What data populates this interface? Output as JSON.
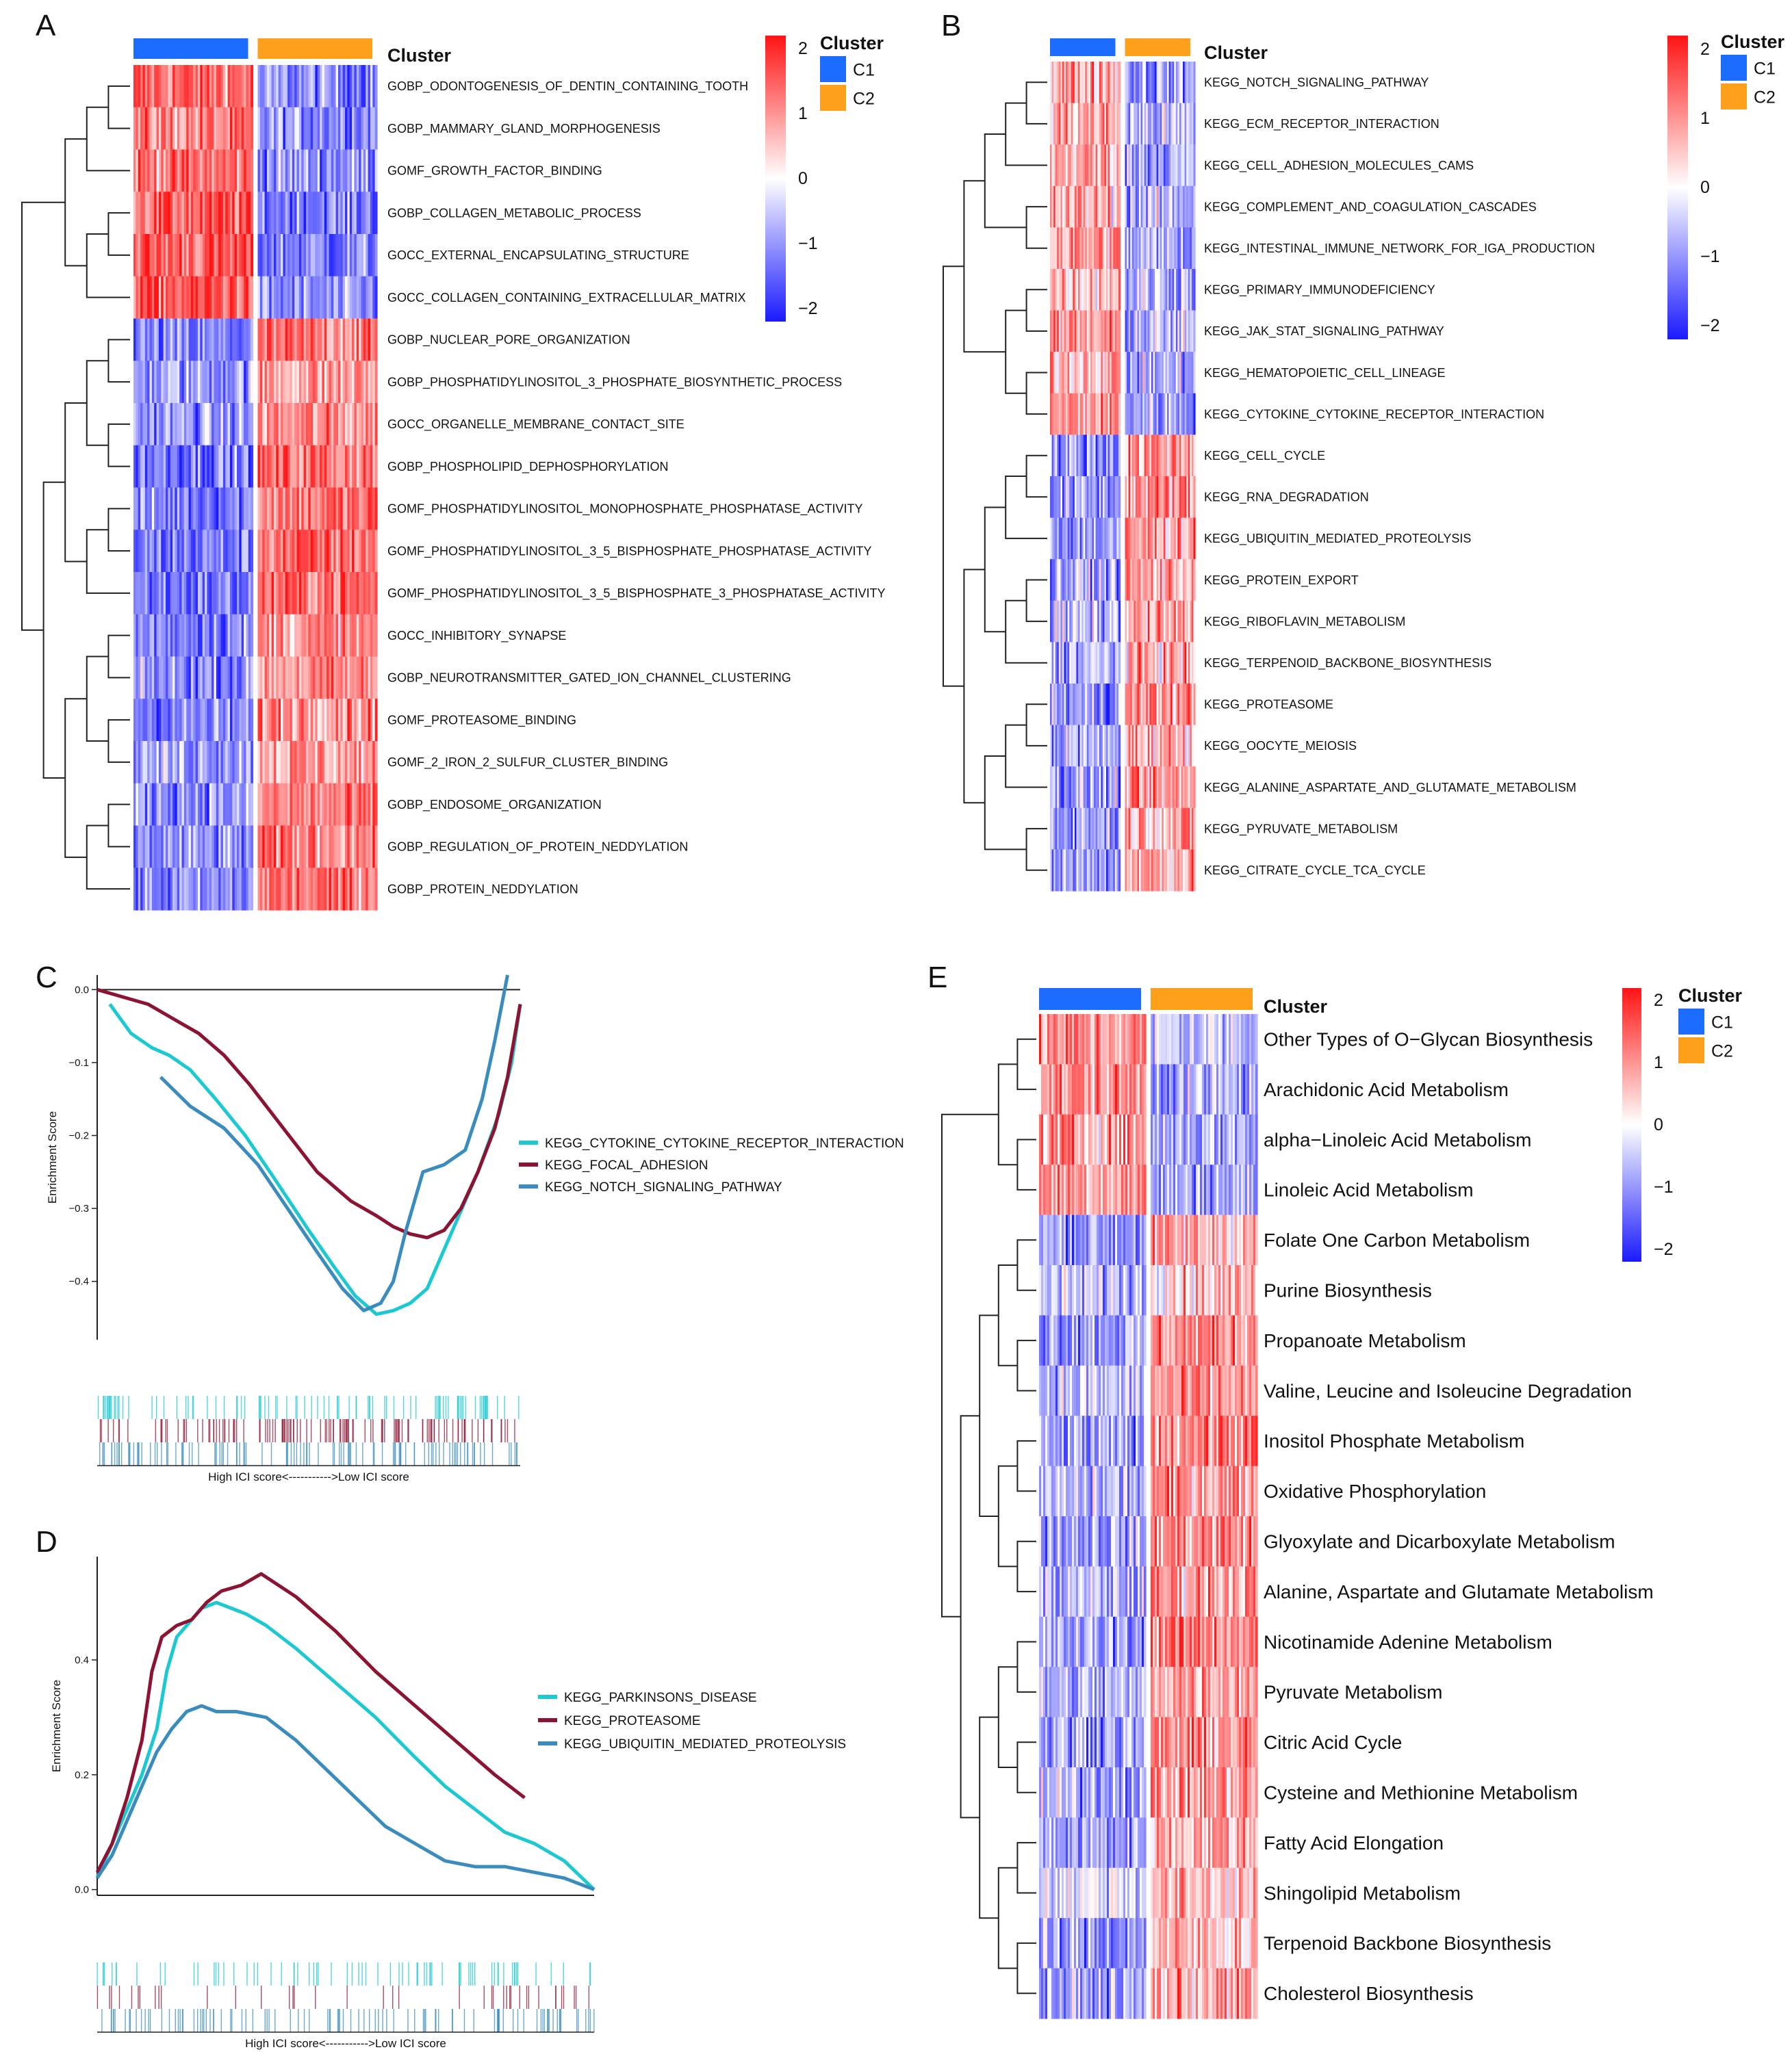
{
  "colors": {
    "c1": "#1c6cff",
    "c2": "#ffa01c",
    "heat_low": "#1a1aff",
    "heat_mid": "#ffffff",
    "heat_high": "#ff1414",
    "cyan": "#1cc8d2",
    "maroon": "#8c1432",
    "steel": "#3a8cbe",
    "dendro": "#222222"
  },
  "cluster_legend": {
    "title": "Cluster",
    "c1": "C1",
    "c2": "C2"
  },
  "panels": {
    "A": {
      "letter": "A",
      "color_scale_ticks": [
        "2",
        "1",
        "0",
        "−1",
        "−2"
      ],
      "rows": [
        {
          "label": "GOBP_ODONTOGENESIS_OF_DENTIN_CONTAINING_TOOTH",
          "c1": 1.4,
          "c2": -1.1
        },
        {
          "label": "GOBP_MAMMARY_GLAND_MORPHOGENESIS",
          "c1": 1.1,
          "c2": -1.0
        },
        {
          "label": "GOMF_GROWTH_FACTOR_BINDING",
          "c1": 1.3,
          "c2": -1.0
        },
        {
          "label": "GOBP_COLLAGEN_METABOLIC_PROCESS",
          "c1": 1.5,
          "c2": -1.2
        },
        {
          "label": "GOCC_EXTERNAL_ENCAPSULATING_STRUCTURE",
          "c1": 1.5,
          "c2": -1.2
        },
        {
          "label": "GOCC_COLLAGEN_CONTAINING_EXTRACELLULAR_MATRIX",
          "c1": 1.6,
          "c2": -1.2
        },
        {
          "label": "GOBP_NUCLEAR_PORE_ORGANIZATION",
          "c1": -1.3,
          "c2": 1.2
        },
        {
          "label": "GOBP_PHOSPHATIDYLINOSITOL_3_PHOSPHATE_BIOSYNTHETIC_PROCESS",
          "c1": -0.9,
          "c2": 0.9
        },
        {
          "label": "GOCC_ORGANELLE_MEMBRANE_CONTACT_SITE",
          "c1": -1.0,
          "c2": 1.0
        },
        {
          "label": "GOBP_PHOSPHOLIPID_DEPHOSPHORYLATION",
          "c1": -1.2,
          "c2": 1.3
        },
        {
          "label": "GOMF_PHOSPHATIDYLINOSITOL_MONOPHOSPHATE_PHOSPHATASE_ACTIVITY",
          "c1": -1.2,
          "c2": 1.3
        },
        {
          "label": "GOMF_PHOSPHATIDYLINOSITOL_3_5_BISPHOSPHATE_PHOSPHATASE_ACTIVITY",
          "c1": -1.3,
          "c2": 1.4
        },
        {
          "label": "GOMF_PHOSPHATIDYLINOSITOL_3_5_BISPHOSPHATE_3_PHOSPHATASE_ACTIVITY",
          "c1": -1.3,
          "c2": 1.4
        },
        {
          "label": "GOCC_INHIBITORY_SYNAPSE",
          "c1": -1.1,
          "c2": 1.0
        },
        {
          "label": "GOBP_NEUROTRANSMITTER_GATED_ION_CHANNEL_CLUSTERING",
          "c1": -1.1,
          "c2": 1.0
        },
        {
          "label": "GOMF_PROTEASOME_BINDING",
          "c1": -1.2,
          "c2": 1.2
        },
        {
          "label": "GOMF_2_IRON_2_SULFUR_CLUSTER_BINDING",
          "c1": -0.8,
          "c2": 0.9
        },
        {
          "label": "GOBP_ENDOSOME_ORGANIZATION",
          "c1": -1.0,
          "c2": 1.1
        },
        {
          "label": "GOBP_REGULATION_OF_PROTEIN_NEDDYLATION",
          "c1": -1.1,
          "c2": 1.2
        },
        {
          "label": "GOBP_PROTEIN_NEDDYLATION",
          "c1": -1.2,
          "c2": 1.3
        }
      ]
    },
    "B": {
      "letter": "B",
      "color_scale_ticks": [
        "2",
        "1",
        "0",
        "−1",
        "−2"
      ],
      "rows": [
        {
          "label": "KEGG_NOTCH_SIGNALING_PATHWAY",
          "c1": 0.9,
          "c2": -0.9
        },
        {
          "label": "KEGG_ECM_RECEPTOR_INTERACTION",
          "c1": 0.8,
          "c2": -0.7
        },
        {
          "label": "KEGG_CELL_ADHESION_MOLECULES_CAMS",
          "c1": 0.8,
          "c2": -0.8
        },
        {
          "label": "KEGG_COMPLEMENT_AND_COAGULATION_CASCADES",
          "c1": 0.7,
          "c2": -0.7
        },
        {
          "label": "KEGG_INTESTINAL_IMMUNE_NETWORK_FOR_IGA_PRODUCTION",
          "c1": 0.9,
          "c2": -0.8
        },
        {
          "label": "KEGG_PRIMARY_IMMUNODEFICIENCY",
          "c1": 0.7,
          "c2": -0.6
        },
        {
          "label": "KEGG_JAK_STAT_SIGNALING_PATHWAY",
          "c1": 0.8,
          "c2": -0.7
        },
        {
          "label": "KEGG_HEMATOPOIETIC_CELL_LINEAGE",
          "c1": 0.8,
          "c2": -0.8
        },
        {
          "label": "KEGG_CYTOKINE_CYTOKINE_RECEPTOR_INTERACTION",
          "c1": 0.9,
          "c2": -0.8
        },
        {
          "label": "KEGG_CELL_CYCLE",
          "c1": -1.0,
          "c2": 1.0
        },
        {
          "label": "KEGG_RNA_DEGRADATION",
          "c1": -1.0,
          "c2": 1.0
        },
        {
          "label": "KEGG_UBIQUITIN_MEDIATED_PROTEOLYSIS",
          "c1": -0.9,
          "c2": 0.9
        },
        {
          "label": "KEGG_PROTEIN_EXPORT",
          "c1": -0.8,
          "c2": 0.8
        },
        {
          "label": "KEGG_RIBOFLAVIN_METABOLISM",
          "c1": -0.7,
          "c2": 0.7
        },
        {
          "label": "KEGG_TERPENOID_BACKBONE_BIOSYNTHESIS",
          "c1": -0.7,
          "c2": 0.7
        },
        {
          "label": "KEGG_PROTEASOME",
          "c1": -1.0,
          "c2": 1.0
        },
        {
          "label": "KEGG_OOCYTE_MEIOSIS",
          "c1": -0.8,
          "c2": 0.8
        },
        {
          "label": "KEGG_ALANINE_ASPARTATE_AND_GLUTAMATE_METABOLISM",
          "c1": -0.9,
          "c2": 0.8
        },
        {
          "label": "KEGG_PYRUVATE_METABOLISM",
          "c1": -0.8,
          "c2": 0.8
        },
        {
          "label": "KEGG_CITRATE_CYCLE_TCA_CYCLE",
          "c1": -0.9,
          "c2": 0.9
        }
      ]
    },
    "E": {
      "letter": "E",
      "color_scale_ticks": [
        "2",
        "1",
        "0",
        "−1",
        "−2"
      ],
      "rows": [
        {
          "label": "Other Types of O−Glycan Biosynthesis",
          "c1": 1.0,
          "c2": -0.5
        },
        {
          "label": "Arachidonic Acid Metabolism",
          "c1": 1.0,
          "c2": -0.8
        },
        {
          "label": "alpha−Linoleic Acid Metabolism",
          "c1": 0.9,
          "c2": -0.7
        },
        {
          "label": "Linoleic Acid Metabolism",
          "c1": 1.0,
          "c2": -0.8
        },
        {
          "label": "Folate One Carbon Metabolism",
          "c1": -0.9,
          "c2": 0.7
        },
        {
          "label": "Purine Biosynthesis",
          "c1": -0.6,
          "c2": 0.6
        },
        {
          "label": "Propanoate Metabolism",
          "c1": -0.8,
          "c2": 1.1
        },
        {
          "label": " Valine, Leucine and Isoleucine Degradation",
          "c1": -0.6,
          "c2": 0.9
        },
        {
          "label": "Inositol Phosphate Metabolism",
          "c1": -1.0,
          "c2": 1.2
        },
        {
          "label": "Oxidative Phosphorylation",
          "c1": -0.7,
          "c2": 1.0
        },
        {
          "label": "Glyoxylate and Dicarboxylate Metabolism",
          "c1": -0.8,
          "c2": 1.1
        },
        {
          "label": " Alanine, Aspartate and Glutamate Metabolism",
          "c1": -0.7,
          "c2": 1.0
        },
        {
          "label": "Nicotinamide Adenine Metabolism",
          "c1": -0.9,
          "c2": 1.2
        },
        {
          "label": "Pyruvate Metabolism",
          "c1": -0.8,
          "c2": 1.0
        },
        {
          "label": "Citric Acid Cycle",
          "c1": -0.8,
          "c2": 1.0
        },
        {
          "label": "Cysteine and Methionine Metabolism",
          "c1": -0.7,
          "c2": 0.9
        },
        {
          "label": "Fatty Acid Elongation",
          "c1": -0.9,
          "c2": 0.8
        },
        {
          "label": "Shingolipid Metabolism",
          "c1": -0.2,
          "c2": 0.6
        },
        {
          "label": "Terpenoid Backbone Biosynthesis",
          "c1": -1.0,
          "c2": 0.6
        },
        {
          "label": "Cholesterol Biosynthesis",
          "c1": -0.9,
          "c2": 0.8
        }
      ]
    }
  },
  "chart_data": [
    {
      "type": "line",
      "panel": "C",
      "title": "",
      "xlabel": "High ICI score<----------->Low ICI score",
      "ylabel": "Enrichment Score",
      "ylim": [
        -0.48,
        0.02
      ],
      "yticks": [
        "0.0",
        "−0.1",
        "−0.2",
        "−0.3",
        "−0.4"
      ],
      "ytick_values": [
        0.0,
        -0.1,
        -0.2,
        -0.3,
        -0.4
      ],
      "series": [
        {
          "name": "KEGG_CYTOKINE_CYTOKINE_RECEPTOR_INTERACTION",
          "color_key": "cyan",
          "x": [
            0.03,
            0.08,
            0.13,
            0.17,
            0.22,
            0.28,
            0.35,
            0.42,
            0.5,
            0.56,
            0.61,
            0.66,
            0.7,
            0.74,
            0.78,
            0.84,
            0.9,
            0.95,
            0.98,
            1.0
          ],
          "y": [
            -0.02,
            -0.06,
            -0.08,
            -0.09,
            -0.11,
            -0.15,
            -0.2,
            -0.26,
            -0.33,
            -0.38,
            -0.42,
            -0.445,
            -0.44,
            -0.43,
            -0.41,
            -0.33,
            -0.25,
            -0.17,
            -0.1,
            -0.02
          ]
        },
        {
          "name": "KEGG_FOCAL_ADHESION",
          "color_key": "maroon",
          "x": [
            0.0,
            0.06,
            0.12,
            0.18,
            0.24,
            0.3,
            0.36,
            0.44,
            0.52,
            0.6,
            0.66,
            0.7,
            0.74,
            0.78,
            0.82,
            0.86,
            0.9,
            0.94,
            0.97,
            1.0
          ],
          "y": [
            0.0,
            -0.01,
            -0.02,
            -0.04,
            -0.06,
            -0.09,
            -0.13,
            -0.19,
            -0.25,
            -0.29,
            -0.31,
            -0.325,
            -0.335,
            -0.34,
            -0.33,
            -0.3,
            -0.25,
            -0.19,
            -0.12,
            -0.02
          ]
        },
        {
          "name": "KEGG_NOTCH_SIGNALING_PATHWAY",
          "color_key": "steel",
          "x": [
            0.15,
            0.22,
            0.3,
            0.38,
            0.45,
            0.52,
            0.58,
            0.63,
            0.67,
            0.7,
            0.73,
            0.77,
            0.82,
            0.87,
            0.91,
            0.94,
            0.97
          ],
          "y": [
            -0.12,
            -0.16,
            -0.19,
            -0.24,
            -0.3,
            -0.36,
            -0.41,
            -0.44,
            -0.43,
            -0.4,
            -0.33,
            -0.25,
            -0.24,
            -0.22,
            -0.15,
            -0.07,
            0.02
          ]
        }
      ]
    },
    {
      "type": "line",
      "panel": "D",
      "title": "",
      "xlabel": "High ICI score<----------->Low ICI score",
      "ylabel": "Enrichment Score",
      "ylim": [
        -0.01,
        0.58
      ],
      "yticks": [
        "0.0",
        "0.2",
        "0.4"
      ],
      "ytick_values": [
        0.0,
        0.2,
        0.4
      ],
      "series": [
        {
          "name": "KEGG_PARKINSONS_DISEASE",
          "color_key": "cyan",
          "x": [
            0.0,
            0.03,
            0.06,
            0.09,
            0.12,
            0.14,
            0.16,
            0.18,
            0.21,
            0.24,
            0.27,
            0.3,
            0.34,
            0.4,
            0.48,
            0.56,
            0.64,
            0.7,
            0.76,
            0.82,
            0.88,
            0.94,
            1.0
          ],
          "y": [
            0.02,
            0.08,
            0.14,
            0.2,
            0.28,
            0.38,
            0.44,
            0.46,
            0.49,
            0.5,
            0.49,
            0.48,
            0.46,
            0.42,
            0.36,
            0.3,
            0.23,
            0.18,
            0.14,
            0.1,
            0.08,
            0.05,
            0.0
          ]
        },
        {
          "name": "KEGG_PROTEASOME",
          "color_key": "maroon",
          "x": [
            0.0,
            0.03,
            0.06,
            0.09,
            0.11,
            0.13,
            0.16,
            0.19,
            0.22,
            0.25,
            0.29,
            0.33,
            0.4,
            0.48,
            0.56,
            0.64,
            0.72,
            0.8,
            0.86
          ],
          "y": [
            0.03,
            0.08,
            0.16,
            0.26,
            0.38,
            0.44,
            0.46,
            0.47,
            0.5,
            0.52,
            0.53,
            0.55,
            0.51,
            0.45,
            0.38,
            0.32,
            0.26,
            0.2,
            0.16
          ]
        },
        {
          "name": "KEGG_UBIQUITIN_MEDIATED_PROTEOLYSIS",
          "color_key": "steel",
          "x": [
            0.0,
            0.03,
            0.06,
            0.09,
            0.12,
            0.15,
            0.18,
            0.21,
            0.24,
            0.28,
            0.34,
            0.4,
            0.46,
            0.52,
            0.58,
            0.64,
            0.7,
            0.76,
            0.82,
            0.88,
            0.94,
            1.0
          ],
          "y": [
            0.02,
            0.06,
            0.12,
            0.18,
            0.24,
            0.28,
            0.31,
            0.32,
            0.31,
            0.31,
            0.3,
            0.26,
            0.21,
            0.16,
            0.11,
            0.08,
            0.05,
            0.04,
            0.04,
            0.03,
            0.02,
            0.0
          ]
        }
      ]
    }
  ]
}
